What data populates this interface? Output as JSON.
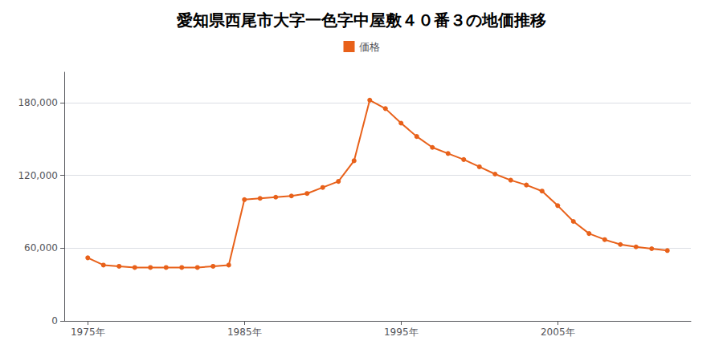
{
  "chart_data": {
    "type": "line",
    "title": "愛知県西尾市大字一色字中屋敷４０番３の地価推移",
    "x": [
      1975,
      1976,
      1977,
      1978,
      1979,
      1980,
      1981,
      1982,
      1983,
      1984,
      1985,
      1986,
      1987,
      1988,
      1989,
      1990,
      1991,
      1992,
      1993,
      1994,
      1995,
      1996,
      1997,
      1998,
      1999,
      2000,
      2001,
      2002,
      2003,
      2004,
      2005,
      2006,
      2007,
      2008,
      2009,
      2010,
      2011,
      2012
    ],
    "series": [
      {
        "name": "価格",
        "color": "#e8611a",
        "values": [
          52000,
          46000,
          45000,
          44000,
          44000,
          44000,
          44000,
          44000,
          45000,
          46000,
          100000,
          101000,
          102000,
          103000,
          105000,
          110000,
          115000,
          132000,
          182000,
          175000,
          163000,
          152000,
          143000,
          138000,
          133000,
          127000,
          121000,
          116000,
          112000,
          107000,
          95000,
          82000,
          72000,
          67000,
          63000,
          61000,
          59500,
          58000
        ]
      }
    ],
    "xlim": [
      1973.5,
      2013.5
    ],
    "xticks": [
      {
        "value": 1975,
        "label": "1975年"
      },
      {
        "value": 1985,
        "label": "1985年"
      },
      {
        "value": 1995,
        "label": "1995年"
      },
      {
        "value": 2005,
        "label": "2005年"
      }
    ],
    "ylim": [
      0,
      205000
    ],
    "yticks": [
      0,
      {
        "value": 60000,
        "label": "60,000"
      },
      {
        "value": 120000,
        "label": "120,000"
      },
      {
        "value": 180000,
        "label": "180,000"
      }
    ],
    "grid": true,
    "marker": "circle",
    "legend": "top"
  }
}
